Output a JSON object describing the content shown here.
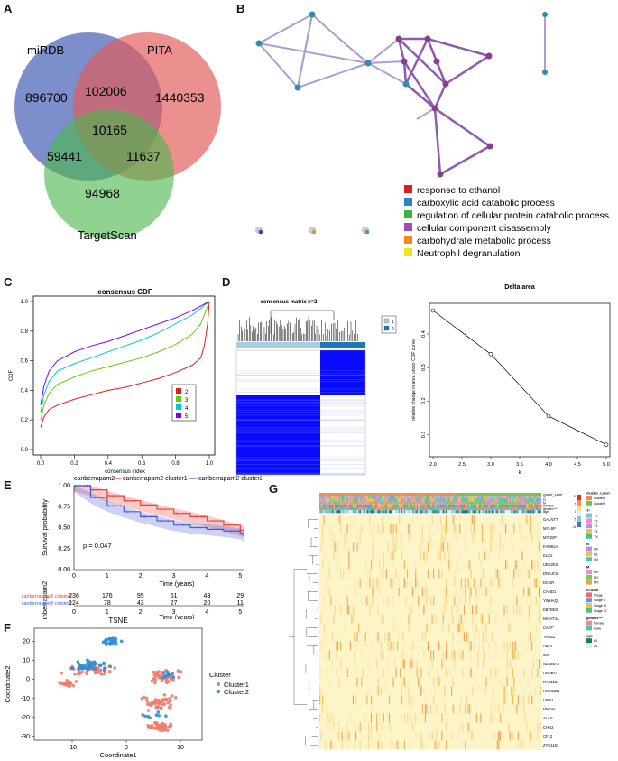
{
  "panels": {
    "A": "A",
    "B": "B",
    "C": "C",
    "D": "D",
    "E": "E",
    "F": "F",
    "G": "G"
  },
  "venn": {
    "labels": {
      "mirdb": "miRDB",
      "pita": "PITA",
      "targetscan": "TargetScan"
    },
    "counts": {
      "mirdb_only": "896700",
      "pita_only": "1440353",
      "ts_only": "94968",
      "mirdb_pita": "102006",
      "mirdb_ts": "59441",
      "pita_ts": "11637",
      "all": "10165"
    },
    "colors": {
      "mirdb": "#4a63b8",
      "pita": "#e25a5a",
      "targetscan": "#4cb84c"
    }
  },
  "network": {
    "legend": [
      {
        "label": "response to ethanol",
        "color": "#e02020"
      },
      {
        "label": "carboxylic acid catabolic process",
        "color": "#2f7fc1"
      },
      {
        "label": "regulation of cellular protein catabolic process",
        "color": "#3cb043"
      },
      {
        "label": "cellular component disassembly",
        "color": "#9b4fb5"
      },
      {
        "label": "carbohydrate metabolic process",
        "color": "#f08a1c"
      },
      {
        "label": "Neutrophil degranulation",
        "color": "#f2e41c"
      }
    ]
  },
  "chart_data": [
    {
      "type": "line",
      "title": "consensus CDF",
      "xlabel": "consensus index",
      "ylabel": "CDF",
      "xlim": [
        0,
        1
      ],
      "ylim": [
        0,
        1
      ],
      "xticks": [
        "0.0",
        "0.2",
        "0.4",
        "0.6",
        "0.8",
        "1.0"
      ],
      "yticks": [
        "0.0",
        "0.2",
        "0.4",
        "0.6",
        "0.8",
        "1.0"
      ],
      "series": [
        {
          "name": "2",
          "color": "#e41a1c",
          "x": [
            0,
            0.02,
            0.05,
            0.1,
            0.2,
            0.3,
            0.4,
            0.5,
            0.6,
            0.7,
            0.8,
            0.9,
            0.95,
            0.97,
            0.99,
            1.0
          ],
          "y": [
            0.15,
            0.22,
            0.27,
            0.3,
            0.34,
            0.37,
            0.4,
            0.42,
            0.45,
            0.48,
            0.52,
            0.57,
            0.62,
            0.7,
            0.85,
            1.0
          ]
        },
        {
          "name": "3",
          "color": "#66cc00",
          "x": [
            0,
            0.02,
            0.05,
            0.1,
            0.2,
            0.3,
            0.4,
            0.5,
            0.6,
            0.7,
            0.8,
            0.9,
            0.95,
            1.0
          ],
          "y": [
            0.2,
            0.3,
            0.38,
            0.44,
            0.49,
            0.53,
            0.56,
            0.59,
            0.62,
            0.66,
            0.71,
            0.78,
            0.85,
            1.0
          ]
        },
        {
          "name": "4",
          "color": "#00cccc",
          "x": [
            0,
            0.02,
            0.05,
            0.1,
            0.2,
            0.3,
            0.4,
            0.5,
            0.6,
            0.7,
            0.8,
            0.9,
            1.0
          ],
          "y": [
            0.25,
            0.37,
            0.46,
            0.53,
            0.58,
            0.62,
            0.66,
            0.7,
            0.74,
            0.79,
            0.85,
            0.91,
            1.0
          ]
        },
        {
          "name": "5",
          "color": "#7f00ff",
          "x": [
            0,
            0.02,
            0.05,
            0.1,
            0.2,
            0.3,
            0.4,
            0.5,
            0.6,
            0.7,
            0.8,
            0.9,
            1.0
          ],
          "y": [
            0.3,
            0.43,
            0.53,
            0.6,
            0.66,
            0.7,
            0.73,
            0.77,
            0.81,
            0.85,
            0.89,
            0.94,
            1.0
          ]
        }
      ],
      "legend": [
        "2",
        "3",
        "4",
        "5"
      ]
    },
    {
      "type": "heatmap",
      "title": "consensus matrix k=2",
      "legend": [
        "1",
        "2"
      ],
      "legend_colors": [
        "#a6cee3",
        "#1f78b4"
      ]
    },
    {
      "type": "line",
      "title": "Delta area",
      "xlabel": "k",
      "ylabel": "relative change in area under CDF curve",
      "x": [
        2,
        3,
        4,
        5
      ],
      "y": [
        0.47,
        0.34,
        0.155,
        0.07
      ],
      "xlim": [
        2,
        5
      ],
      "ylim": [
        0.05,
        0.47
      ],
      "xticks": [
        "2.0",
        "2.5",
        "3.0",
        "3.5",
        "4.0",
        "4.5",
        "5.0"
      ],
      "yticks": [
        "0.1",
        "0.2",
        "0.3",
        "0.4"
      ]
    },
    {
      "type": "line",
      "title": "canberrapam2",
      "ylabel": "Survival probability",
      "xlabel": "Time (years)",
      "legend": [
        "canberrapam2",
        "canberrapam2 cluster1",
        "canberrapam2 cluster2"
      ],
      "pvalue": "p = 0.047",
      "xticks": [
        "0",
        "1",
        "2",
        "3",
        "4",
        "5"
      ],
      "yticks": [
        "0.00",
        "0.25",
        "0.50",
        "0.75",
        "1.00"
      ],
      "series": [
        {
          "name": "cluster1",
          "color": "#e8443a",
          "x": [
            0,
            0.5,
            1,
            1.5,
            2,
            2.5,
            3,
            3.5,
            4,
            4.5,
            5,
            5.1
          ],
          "y": [
            1,
            0.95,
            0.88,
            0.82,
            0.77,
            0.72,
            0.67,
            0.63,
            0.58,
            0.53,
            0.47,
            0.46
          ]
        },
        {
          "name": "cluster2",
          "color": "#4a5bd6",
          "x": [
            0,
            0.5,
            1,
            1.5,
            2,
            2.5,
            3,
            3.5,
            4,
            4.5,
            5,
            5.1
          ],
          "y": [
            1,
            0.86,
            0.76,
            0.69,
            0.63,
            0.58,
            0.53,
            0.5,
            0.48,
            0.46,
            0.43,
            0.4
          ]
        }
      ],
      "risk_table": {
        "title": "canberrapam2",
        "rows": [
          {
            "label": "canberrapam2 cluster1",
            "color": "#e8443a",
            "values": [
              "236",
              "176",
              "95",
              "61",
              "43",
              "29"
            ]
          },
          {
            "label": "canberrapam2 cluster2",
            "color": "#4a5bd6",
            "values": [
              "124",
              "78",
              "43",
              "27",
              "20",
              "11"
            ]
          }
        ],
        "xticks": [
          "0",
          "1",
          "2",
          "3",
          "4",
          "5"
        ],
        "xlabel": "Time (years)"
      }
    },
    {
      "type": "scatter",
      "title": "TSNE",
      "xlabel": "Coordinate1",
      "ylabel": "Coordinate2",
      "xlim": [
        -17,
        14
      ],
      "ylim": [
        -32,
        27
      ],
      "xticks": [
        "-10",
        "0",
        "10"
      ],
      "yticks": [
        "20",
        "10",
        "0",
        "-10",
        "-20",
        "-30"
      ],
      "legend_title": "Cluster",
      "series": [
        {
          "name": "Cluster1",
          "color": "#f07b6b"
        },
        {
          "name": "Cluster2",
          "color": "#2f8fd8"
        }
      ]
    },
    {
      "type": "heatmap",
      "genes": [
        "GALNT7",
        "MYL6P",
        "MYCBP",
        "FAM81A",
        "KLC2",
        "UBE2E3",
        "DNAJC5",
        "DCNR",
        "CAND1",
        "YWHAQ",
        "KBTBD2",
        "NIGAT4A",
        "CAST",
        "TPD52",
        "ABAT",
        "MIP",
        "SLC25A2",
        "HSADH",
        "RAB11B",
        "HSD11B1",
        "LPIN1",
        "HNF4A",
        "ALAS",
        "CHN2",
        "CFL2",
        "ZYG11B"
      ],
      "annotations": [
        "cluster_Level",
        "T*",
        "N",
        "M",
        "STAGE",
        "gender***",
        "age"
      ],
      "legend_groups": [
        {
          "title": "cluster_Level",
          "items": [
            {
              "label": "cluster1",
              "color": "#f08c4a"
            },
            {
              "label": "cluster2",
              "color": "#7fbf3f"
            }
          ]
        },
        {
          "title": "T*",
          "items": [
            {
              "label": "T1",
              "color": "#6fc7e8"
            },
            {
              "label": "T2",
              "color": "#f28ac0"
            },
            {
              "label": "T3",
              "color": "#c38be8"
            },
            {
              "label": "T4",
              "color": "#e8c34a"
            },
            {
              "label": "TX",
              "color": "#4ac38b"
            }
          ]
        },
        {
          "title": "N",
          "items": [
            {
              "label": "N0",
              "color": "#c38be8"
            },
            {
              "label": "N1",
              "color": "#e8c34a"
            },
            {
              "label": "NX",
              "color": "#4ac3c3"
            }
          ]
        },
        {
          "title": "M",
          "items": [
            {
              "label": "M0",
              "color": "#f28ac0"
            },
            {
              "label": "M1",
              "color": "#6fc76f"
            },
            {
              "label": "MX",
              "color": "#e8a34a"
            }
          ]
        },
        {
          "title": "STAGE",
          "items": [
            {
              "label": "Stage I",
              "color": "#e86f6f"
            },
            {
              "label": "Stage II",
              "color": "#6f8be8"
            },
            {
              "label": "Stage III",
              "color": "#e8c34a"
            },
            {
              "label": "Stage IV",
              "color": "#4ac38b"
            }
          ]
        },
        {
          "title": "gender***",
          "items": [
            {
              "label": "female",
              "color": "#f28a8a"
            },
            {
              "label": "male",
              "color": "#4ac3b4"
            }
          ]
        },
        {
          "title": "age",
          "items": [
            {
              "label": "80",
              "color": "#1b7a6b"
            },
            {
              "label": "20",
              "color": "#d9f2ee"
            }
          ]
        }
      ],
      "colorbar": [
        "10",
        "5",
        "0",
        "-5",
        "-10"
      ]
    }
  ]
}
